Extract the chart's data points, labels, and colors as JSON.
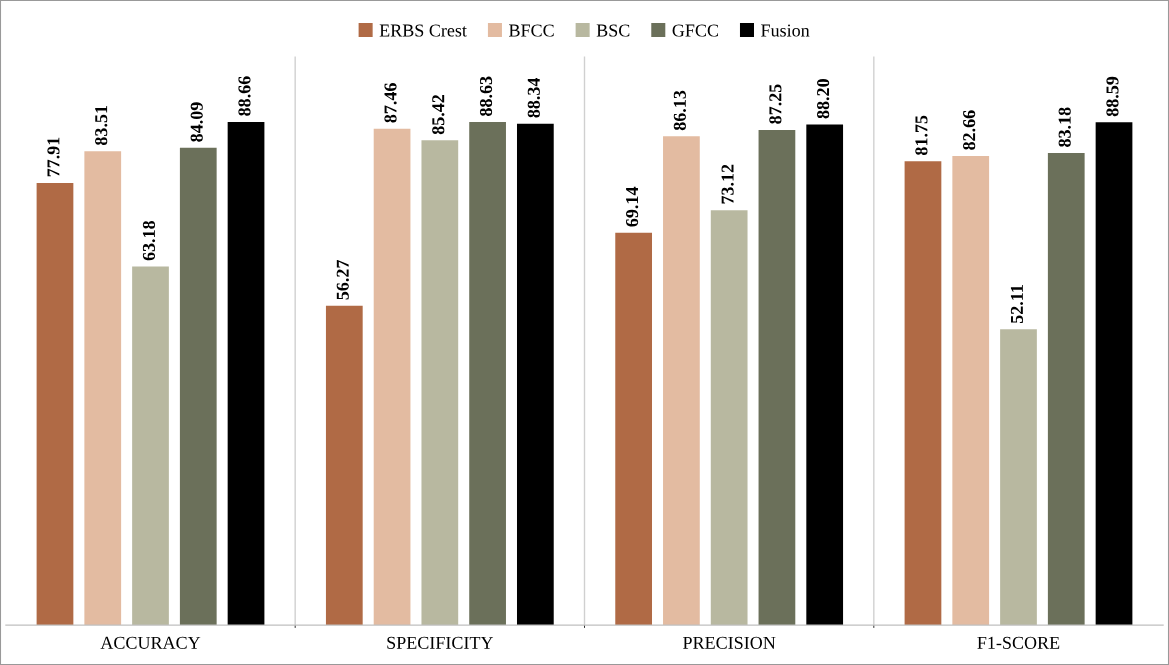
{
  "chart_data": {
    "type": "bar",
    "categories": [
      "ACCURACY",
      "SPECIFICITY",
      "PRECISION",
      "F1-SCORE"
    ],
    "series": [
      {
        "name": "ERBS Crest",
        "color": "#b06a45",
        "values": [
          77.91,
          56.27,
          69.14,
          81.75
        ],
        "value_labels": [
          "77.91",
          "56.27",
          "69.14",
          "81.75"
        ]
      },
      {
        "name": "BFCC",
        "color": "#e3bba1",
        "values": [
          83.51,
          87.46,
          86.13,
          82.66
        ],
        "value_labels": [
          "83.51",
          "87.46",
          "86.13",
          "82.66"
        ]
      },
      {
        "name": "BSC",
        "color": "#b8b8a0",
        "values": [
          63.18,
          85.42,
          73.12,
          52.11
        ],
        "value_labels": [
          "63.18",
          "85.42",
          "73.12",
          "52.11"
        ]
      },
      {
        "name": "GFCC",
        "color": "#6b705a",
        "values": [
          84.09,
          88.63,
          87.25,
          83.18
        ],
        "value_labels": [
          "84.09",
          "88.63",
          "87.25",
          "83.18"
        ]
      },
      {
        "name": "Fusion",
        "color": "#000000",
        "values": [
          88.66,
          88.34,
          88.2,
          88.59
        ],
        "value_labels": [
          "88.66",
          "88.34",
          "88.20",
          "88.59"
        ]
      }
    ],
    "legend": "top",
    "grid": "x"
  }
}
